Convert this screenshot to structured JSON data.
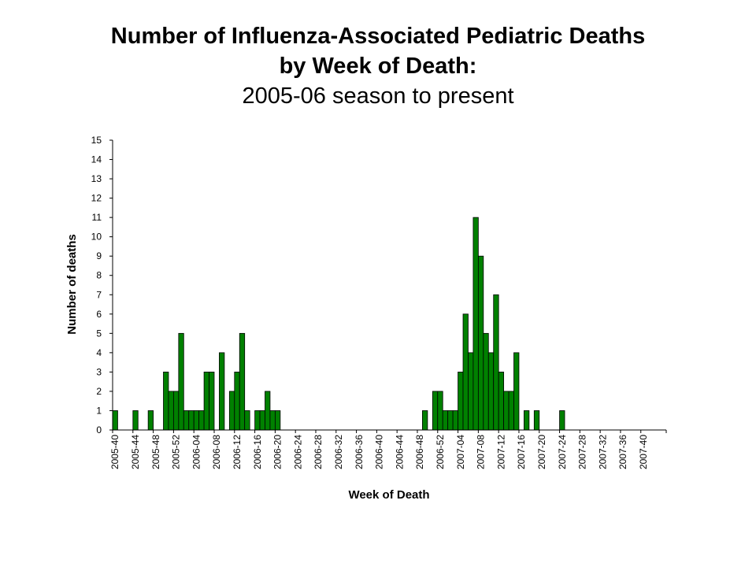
{
  "titles": {
    "line1": "Number of Influenza-Associated Pediatric Deaths",
    "line2": "by Week of Death:",
    "line3": "2005-06 season to present"
  },
  "chart_data": {
    "type": "bar",
    "title": "Number of Influenza-Associated Pediatric Deaths by Week of Death: 2005-06 season to present",
    "xlabel": "Week of Death",
    "ylabel": "Number of deaths",
    "ylim": [
      0,
      15
    ],
    "yticks": [
      0,
      1,
      2,
      3,
      4,
      5,
      6,
      7,
      8,
      9,
      10,
      11,
      12,
      13,
      14,
      15
    ],
    "xtick_labels": [
      "2005-40",
      "2005-44",
      "2005-48",
      "2005-52",
      "2006-04",
      "2006-08",
      "2006-12",
      "2006-16",
      "2006-20",
      "2006-24",
      "2006-28",
      "2006-32",
      "2006-36",
      "2006-40",
      "2006-44",
      "2006-48",
      "2006-52",
      "2007-04",
      "2007-08",
      "2007-12",
      "2007-16",
      "2007-20",
      "2007-24",
      "2007-28",
      "2007-32",
      "2007-36",
      "2007-40"
    ],
    "bar_color": "#008000",
    "grid": false,
    "legend": "none",
    "categories": [
      "2005-40",
      "2005-41",
      "2005-42",
      "2005-43",
      "2005-44",
      "2005-45",
      "2005-46",
      "2005-47",
      "2005-48",
      "2005-49",
      "2005-50",
      "2005-51",
      "2005-52",
      "2006-01",
      "2006-02",
      "2006-03",
      "2006-04",
      "2006-05",
      "2006-06",
      "2006-07",
      "2006-08",
      "2006-09",
      "2006-10",
      "2006-11",
      "2006-12",
      "2006-13",
      "2006-14",
      "2006-15",
      "2006-16",
      "2006-17",
      "2006-18",
      "2006-19",
      "2006-20",
      "2006-21",
      "2006-22",
      "2006-23",
      "2006-24",
      "2006-25",
      "2006-26",
      "2006-27",
      "2006-28",
      "2006-29",
      "2006-30",
      "2006-31",
      "2006-32",
      "2006-33",
      "2006-34",
      "2006-35",
      "2006-36",
      "2006-37",
      "2006-38",
      "2006-39",
      "2006-40",
      "2006-41",
      "2006-42",
      "2006-43",
      "2006-44",
      "2006-45",
      "2006-46",
      "2006-47",
      "2006-48",
      "2006-49",
      "2006-50",
      "2006-51",
      "2006-52",
      "2007-01",
      "2007-02",
      "2007-03",
      "2007-04",
      "2007-05",
      "2007-06",
      "2007-07",
      "2007-08",
      "2007-09",
      "2007-10",
      "2007-11",
      "2007-12",
      "2007-13",
      "2007-14",
      "2007-15",
      "2007-16",
      "2007-17",
      "2007-18",
      "2007-19",
      "2007-20",
      "2007-21",
      "2007-22",
      "2007-23",
      "2007-24",
      "2007-25",
      "2007-26",
      "2007-27",
      "2007-28",
      "2007-29",
      "2007-30",
      "2007-31",
      "2007-32",
      "2007-33",
      "2007-34",
      "2007-35",
      "2007-36",
      "2007-37",
      "2007-38",
      "2007-39",
      "2007-40",
      "2007-41",
      "2007-42",
      "2007-43",
      "2007-44"
    ],
    "values": [
      1,
      0,
      0,
      0,
      1,
      0,
      0,
      1,
      0,
      0,
      3,
      2,
      2,
      5,
      1,
      1,
      1,
      1,
      3,
      3,
      0,
      4,
      0,
      2,
      3,
      5,
      1,
      0,
      1,
      1,
      2,
      1,
      1,
      0,
      0,
      0,
      0,
      0,
      0,
      0,
      0,
      0,
      0,
      0,
      0,
      0,
      0,
      0,
      0,
      0,
      0,
      0,
      0,
      0,
      0,
      0,
      0,
      0,
      0,
      0,
      0,
      1,
      0,
      2,
      2,
      1,
      1,
      1,
      3,
      6,
      4,
      11,
      9,
      5,
      4,
      7,
      3,
      2,
      2,
      4,
      0,
      1,
      0,
      1,
      0,
      0,
      0,
      0,
      1,
      0,
      0,
      0,
      0,
      0,
      0,
      0,
      0,
      0,
      0,
      0,
      0,
      0,
      0,
      0,
      0,
      0,
      0,
      0,
      0
    ]
  }
}
